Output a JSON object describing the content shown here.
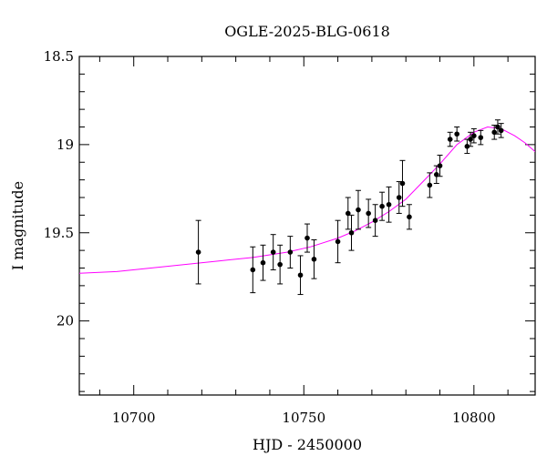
{
  "chart_data": {
    "type": "scatter",
    "title": "OGLE-2025-BLG-0618",
    "xlabel": "HJD - 2450000",
    "ylabel": "I magnitude",
    "xlim": [
      10684,
      10818
    ],
    "ylim": [
      20.42,
      18.5
    ],
    "y_inverted": true,
    "x_ticks": [
      10700,
      10750,
      10800
    ],
    "y_ticks": [
      18.5,
      19,
      19.5,
      20
    ],
    "y_tick_labels": [
      "18.5",
      "19",
      "19.5",
      "20"
    ],
    "colors": {
      "model": "#ff00ff",
      "points": "#000000"
    },
    "points": [
      {
        "x": 10719,
        "y": 19.61,
        "err": 0.18
      },
      {
        "x": 10735,
        "y": 19.71,
        "err": 0.13
      },
      {
        "x": 10738,
        "y": 19.67,
        "err": 0.1
      },
      {
        "x": 10741,
        "y": 19.61,
        "err": 0.1
      },
      {
        "x": 10743,
        "y": 19.68,
        "err": 0.11
      },
      {
        "x": 10746,
        "y": 19.61,
        "err": 0.09
      },
      {
        "x": 10749,
        "y": 19.74,
        "err": 0.11
      },
      {
        "x": 10751,
        "y": 19.53,
        "err": 0.08
      },
      {
        "x": 10753,
        "y": 19.65,
        "err": 0.11
      },
      {
        "x": 10760,
        "y": 19.55,
        "err": 0.12
      },
      {
        "x": 10763,
        "y": 19.39,
        "err": 0.09
      },
      {
        "x": 10764,
        "y": 19.5,
        "err": 0.1
      },
      {
        "x": 10766,
        "y": 19.37,
        "err": 0.11
      },
      {
        "x": 10769,
        "y": 19.39,
        "err": 0.08
      },
      {
        "x": 10771,
        "y": 19.43,
        "err": 0.09
      },
      {
        "x": 10773,
        "y": 19.35,
        "err": 0.08
      },
      {
        "x": 10775,
        "y": 19.34,
        "err": 0.1
      },
      {
        "x": 10778,
        "y": 19.3,
        "err": 0.09
      },
      {
        "x": 10779,
        "y": 19.22,
        "err": 0.13
      },
      {
        "x": 10781,
        "y": 19.41,
        "err": 0.07
      },
      {
        "x": 10787,
        "y": 19.23,
        "err": 0.07
      },
      {
        "x": 10789,
        "y": 19.17,
        "err": 0.05
      },
      {
        "x": 10790,
        "y": 19.12,
        "err": 0.06
      },
      {
        "x": 10793,
        "y": 18.97,
        "err": 0.04
      },
      {
        "x": 10795,
        "y": 18.94,
        "err": 0.04
      },
      {
        "x": 10798,
        "y": 19.01,
        "err": 0.04
      },
      {
        "x": 10799,
        "y": 18.97,
        "err": 0.04
      },
      {
        "x": 10800,
        "y": 18.95,
        "err": 0.04
      },
      {
        "x": 10802,
        "y": 18.96,
        "err": 0.04
      },
      {
        "x": 10806,
        "y": 18.93,
        "err": 0.04
      },
      {
        "x": 10807,
        "y": 18.9,
        "err": 0.04
      },
      {
        "x": 10808,
        "y": 18.92,
        "err": 0.04
      }
    ],
    "model": {
      "x": [
        10684,
        10695,
        10705,
        10715,
        10725,
        10735,
        10745,
        10752,
        10760,
        10765,
        10770,
        10775,
        10780,
        10785,
        10790,
        10795,
        10800,
        10804,
        10808,
        10812,
        10815,
        10818
      ],
      "y": [
        19.73,
        19.72,
        19.7,
        19.68,
        19.66,
        19.64,
        19.61,
        19.58,
        19.53,
        19.49,
        19.44,
        19.38,
        19.31,
        19.21,
        19.11,
        19.0,
        18.93,
        18.9,
        18.91,
        18.95,
        18.99,
        19.04
      ]
    }
  }
}
